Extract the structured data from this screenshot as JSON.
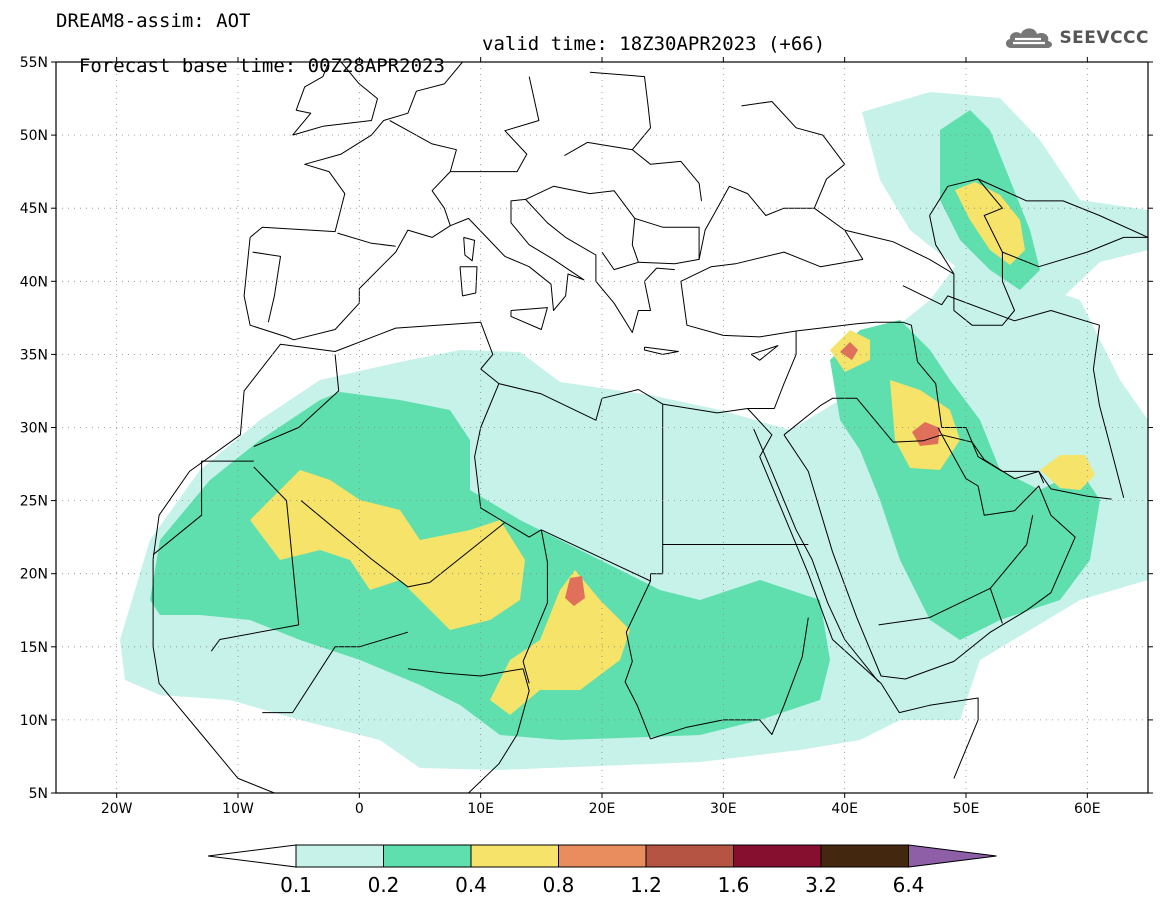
{
  "title_line1": "DREAM8-assim: AOT",
  "title_line2_base": "Forecast base time: 00Z28APR2023",
  "title_line2_valid": "valid time: 18Z30APR2023 (+66)",
  "logo_text": "SEEVCCC",
  "logo_icon": "cloud-icon",
  "map": {
    "lon_range": [
      -25,
      65
    ],
    "lat_range": [
      5,
      55
    ],
    "lat_labels": [
      "5N",
      "10N",
      "15N",
      "20N",
      "25N",
      "30N",
      "35N",
      "40N",
      "45N",
      "50N",
      "55N"
    ],
    "lon_labels": [
      "20W",
      "10W",
      "0",
      "10E",
      "20E",
      "30E",
      "40E",
      "50E",
      "60E"
    ],
    "grid": "dotted"
  },
  "colorbar": {
    "labels": [
      "0.1",
      "0.2",
      "0.4",
      "0.8",
      "1.2",
      "1.6",
      "3.2",
      "6.4"
    ],
    "colors": [
      "#c6f2ea",
      "#5fdfad",
      "#f5e36a",
      "#e98c5e",
      "#b55443",
      "#860e2e",
      "#43280f"
    ],
    "over_color": "#8e5fa6",
    "under_color": "#ffffff"
  },
  "field_colors": {
    "lt": "#c6f2ea",
    "md": "#5fdfad",
    "yl": "#f5e36a",
    "rd": "#e0705a"
  }
}
